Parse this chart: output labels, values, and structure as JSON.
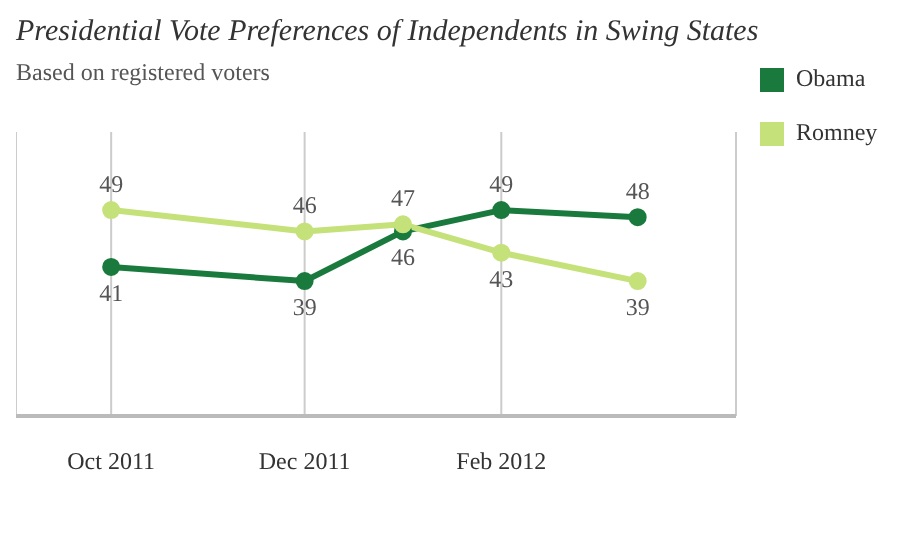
{
  "chart_data": {
    "type": "line",
    "title": "Presidential Vote Preferences of Independents in Swing States",
    "subtitle": "Based on registered voters",
    "x": [
      "2011-10-01",
      "2011-12-01",
      "2012-01-01",
      "2012-02-01",
      "2012-03-15"
    ],
    "series": [
      {
        "name": "Obama",
        "color": "#1a7a3e",
        "values": [
          41,
          39,
          46,
          49,
          48
        ]
      },
      {
        "name": "Romney",
        "color": "#c5e17a",
        "values": [
          49,
          46,
          47,
          43,
          39
        ]
      }
    ],
    "xlim": [
      "2011-09-01",
      "2012-04-15"
    ],
    "xticks": [
      {
        "value": "2011-10-01",
        "label": "Oct 2011"
      },
      {
        "value": "2011-12-01",
        "label": "Dec 2011"
      },
      {
        "value": "2012-02-01",
        "label": "Feb 2012"
      }
    ],
    "ylim": [
      20,
      60
    ],
    "tick_labels": "x",
    "grid": "x",
    "legend": "top right",
    "marker": "circle",
    "data_labels": true
  }
}
